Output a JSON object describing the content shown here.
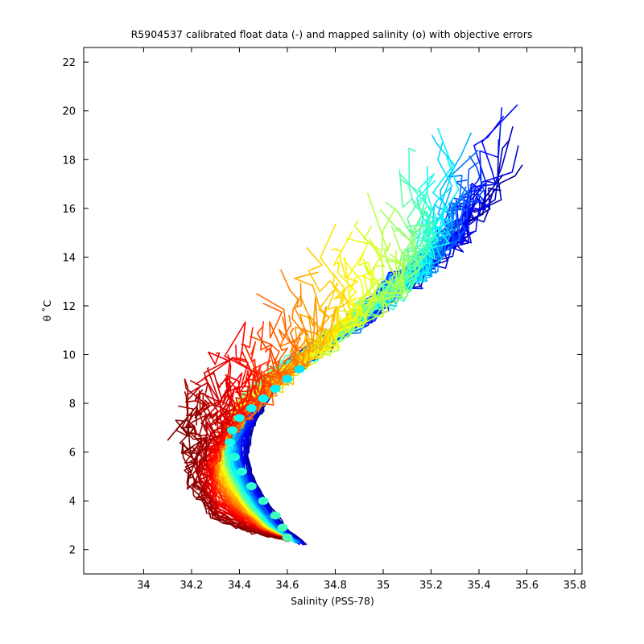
{
  "chart_data": {
    "type": "line",
    "title": "R5904537 calibrated float data (-) and mapped salinity (o) with objective errors",
    "xlabel": "Salinity (PSS-78)",
    "ylabel": "θ ˚C",
    "xlim": [
      33.75,
      35.83
    ],
    "ylim": [
      1.0,
      22.6
    ],
    "x_ticks": [
      34,
      34.2,
      34.4,
      34.6,
      34.8,
      35,
      35.2,
      35.4,
      35.6,
      35.8
    ],
    "x_tick_labels": [
      "34",
      "34.2",
      "34.4",
      "34.6",
      "34.8",
      "35",
      "35.2",
      "35.4",
      "35.6",
      "35.8"
    ],
    "y_ticks": [
      2,
      4,
      6,
      8,
      10,
      12,
      14,
      16,
      18,
      20,
      22
    ],
    "y_tick_labels": [
      "2",
      "4",
      "6",
      "8",
      "10",
      "12",
      "14",
      "16",
      "18",
      "20",
      "22"
    ],
    "grid": false,
    "colormap": "jet",
    "colormap_colors": [
      "#00008f",
      "#0000ff",
      "#0080ff",
      "#00ffff",
      "#80ff80",
      "#ffff00",
      "#ff8000",
      "#ff0000",
      "#800000"
    ],
    "profiles": {
      "count": 140,
      "description_series": [
        {
          "name": "profile_early",
          "color_index": 0.0,
          "points": [
            [
              35.7,
              20.5
            ],
            [
              35.55,
              17.5
            ],
            [
              35.45,
              16.5
            ],
            [
              35.35,
              15.3
            ],
            [
              35.25,
              14.3
            ],
            [
              35.1,
              13.2
            ],
            [
              35.0,
              12.2
            ],
            [
              34.85,
              11.0
            ],
            [
              34.7,
              10.0
            ],
            [
              34.55,
              8.8
            ],
            [
              34.48,
              7.6
            ],
            [
              34.44,
              6.5
            ],
            [
              34.43,
              5.6
            ],
            [
              34.47,
              4.6
            ],
            [
              34.55,
              3.4
            ],
            [
              34.62,
              2.6
            ],
            [
              34.68,
              2.2
            ]
          ]
        },
        {
          "name": "profile_mid",
          "color_index": 0.5,
          "points": [
            [
              35.05,
              18.0
            ],
            [
              35.1,
              16.0
            ],
            [
              35.15,
              14.5
            ],
            [
              35.1,
              13.0
            ],
            [
              34.95,
              12.0
            ],
            [
              34.8,
              10.9
            ],
            [
              34.6,
              9.5
            ],
            [
              34.45,
              8.6
            ],
            [
              34.36,
              7.5
            ],
            [
              34.32,
              6.5
            ],
            [
              34.34,
              5.4
            ],
            [
              34.4,
              4.2
            ],
            [
              34.5,
              3.0
            ],
            [
              34.6,
              2.4
            ]
          ]
        },
        {
          "name": "profile_late",
          "color_index": 1.0,
          "points": [
            [
              34.1,
              8.0
            ],
            [
              34.15,
              7.2
            ],
            [
              34.2,
              6.3
            ],
            [
              34.18,
              5.2
            ],
            [
              34.22,
              4.2
            ],
            [
              34.3,
              3.2
            ],
            [
              34.45,
              2.7
            ],
            [
              34.6,
              2.4
            ]
          ]
        }
      ]
    },
    "mapped_salinity": [
      {
        "theta": 9.4,
        "salinity": 34.65
      },
      {
        "theta": 9.0,
        "salinity": 34.6
      },
      {
        "theta": 8.6,
        "salinity": 34.55
      },
      {
        "theta": 8.2,
        "salinity": 34.5
      },
      {
        "theta": 7.8,
        "salinity": 34.45
      },
      {
        "theta": 7.4,
        "salinity": 34.4
      },
      {
        "theta": 6.9,
        "salinity": 34.37
      },
      {
        "theta": 6.4,
        "salinity": 34.36
      },
      {
        "theta": 5.8,
        "salinity": 34.38
      },
      {
        "theta": 5.2,
        "salinity": 34.41
      },
      {
        "theta": 4.6,
        "salinity": 34.45
      },
      {
        "theta": 4.0,
        "salinity": 34.5
      },
      {
        "theta": 3.4,
        "salinity": 34.55
      },
      {
        "theta": 2.9,
        "salinity": 34.58
      },
      {
        "theta": 2.5,
        "salinity": 34.6
      }
    ]
  }
}
